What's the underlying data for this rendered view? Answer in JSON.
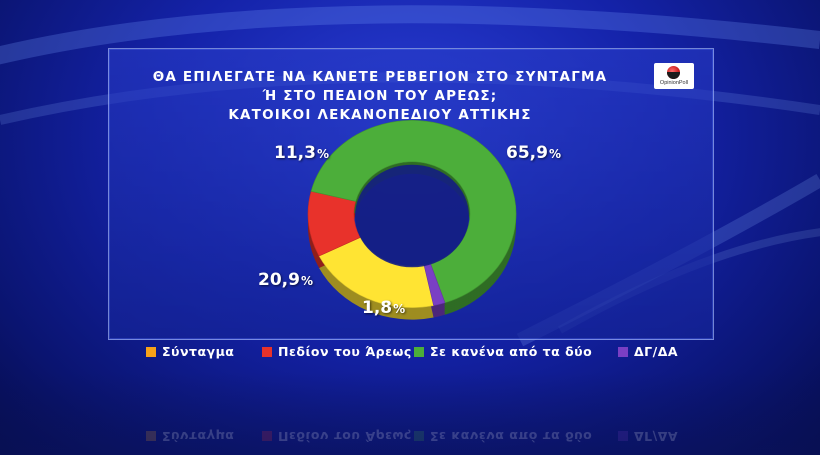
{
  "title_lines": [
    "ΘΑ ΕΠΙΛΕΓΑΤΕ ΝΑ ΚΑΝΕΤΕ ΡΕΒΕΓΙΟΝ ΣΤΟ ΣΥΝΤΑΓΜΑ",
    "Ή ΣΤΟ ΠΕΔΙΟΝ ΤΟΥ ΑΡΕΩΣ;",
    "ΚΑΤΟΙΚΟΙ ΛΕΚΑΝΟΠΕΔΙΟΥ ΑΤΤΙΚΗΣ"
  ],
  "logo": {
    "text": "OpinionPoll"
  },
  "chart_data": {
    "type": "pie",
    "style": "3d-donut",
    "unit": "%",
    "categories": [
      "Σύνταγμα",
      "Πεδίον του Άρεως",
      "Σε κανένα από τα δύο",
      "ΔΓ/ΔΑ"
    ],
    "values": [
      20.9,
      11.3,
      65.9,
      1.8
    ],
    "value_labels": [
      "20,9",
      "11,3",
      "65,9",
      "1,8"
    ],
    "colors": [
      "#ffe433",
      "#e8322b",
      "#4cae3a",
      "#7a3fc4"
    ],
    "legend_colors": [
      "#f7a21a",
      "#e8322b",
      "#4cae3a",
      "#7a3fc4"
    ],
    "legend_position": "bottom"
  }
}
